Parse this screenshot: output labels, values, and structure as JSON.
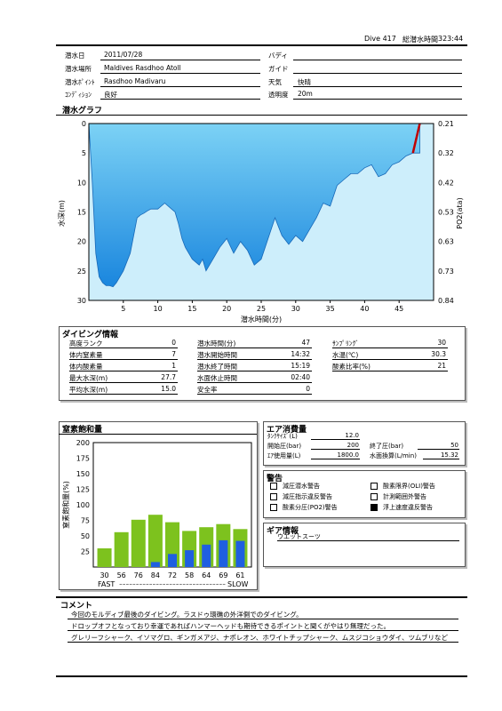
{
  "header": {
    "dive_label": "Dive 417",
    "total_time_label": "総潜水時間",
    "total_time": "323:44"
  },
  "info": {
    "date_label": "潜水日",
    "date": "2011/07/28",
    "place_label": "潜水場所",
    "place": "Maldives Rasdhoo Atoll",
    "point_label": "潜水ﾎﾟｲﾝﾄ",
    "point": "Rasdhoo Madivaru",
    "condition_label": "ｺﾝﾃﾞｨｼｮﾝ",
    "condition": "良好",
    "buddy_label": "バディ",
    "buddy": "",
    "guide_label": "ガイド",
    "guide": "",
    "weather_label": "天気",
    "weather": "快晴",
    "visibility_label": "透明度",
    "visibility": "20m"
  },
  "graph": {
    "title": "潜水グラフ",
    "ylabel": "水深(m)",
    "ylabel_right": "PO2(ata)",
    "xlabel": "潜水時間(分)"
  },
  "chart_data": {
    "type": "area",
    "title": "潜水グラフ",
    "xlabel": "潜水時間(分)",
    "ylabel": "水深(m)",
    "ylabel_right": "PO2(ata)",
    "xlim": [
      0,
      50
    ],
    "ylim": [
      0,
      30
    ],
    "x_ticks": [
      "5",
      "10",
      "15",
      "20",
      "25",
      "30",
      "35",
      "40",
      "45"
    ],
    "y_ticks": [
      "0",
      "5",
      "10",
      "15",
      "20",
      "25",
      "30"
    ],
    "y2_ticks": [
      "0.21",
      "0.32",
      "0.42",
      "0.53",
      "0.63",
      "0.73",
      "0.84"
    ],
    "depth_x": [
      0,
      0.5,
      1,
      1.5,
      2,
      2.5,
      3,
      3.5,
      4,
      5,
      6,
      7,
      7.5,
      8,
      8.5,
      9,
      10,
      11,
      12,
      12.5,
      13,
      13.5,
      14,
      15,
      16,
      16.5,
      17,
      18,
      19,
      20,
      21,
      22,
      23,
      24,
      25,
      26,
      27,
      28,
      29,
      30,
      31,
      32,
      33,
      34,
      35,
      36,
      37,
      38,
      39,
      40,
      41,
      42,
      43,
      44,
      45,
      46,
      47,
      48
    ],
    "depth_y": [
      0,
      10,
      22,
      26,
      27,
      27.5,
      27.5,
      27.7,
      27,
      25,
      22,
      16,
      15.5,
      15.2,
      14.8,
      14.5,
      14.5,
      13.5,
      14.5,
      15,
      17,
      19.5,
      21,
      23,
      24,
      23,
      25,
      23,
      21,
      19.5,
      22,
      20,
      21.5,
      24,
      23,
      19.5,
      16,
      19,
      20.5,
      19,
      20,
      18,
      16,
      13.5,
      14,
      10.5,
      9.5,
      8.5,
      8.5,
      7.5,
      7,
      9,
      8.5,
      7,
      6.5,
      5.5,
      5,
      5
    ],
    "ascent_x": [
      47,
      48
    ],
    "ascent_y": [
      5,
      0
    ],
    "area_color": "#1e90e0",
    "ascent_color": "#c00000"
  },
  "dive_info": {
    "title": "ダイビング情報",
    "col1": [
      {
        "label": "高度ランク",
        "value": "0"
      },
      {
        "label": "体内窒素量",
        "value": "7"
      },
      {
        "label": "体内酸素量",
        "value": "1"
      },
      {
        "label": "最大水深(m)",
        "value": "27.7"
      },
      {
        "label": "平均水深(m)",
        "value": "15.0"
      }
    ],
    "col2": [
      {
        "label": "潜水時間(分)",
        "value": "47"
      },
      {
        "label": "潜水開始時間",
        "value": "14:32"
      },
      {
        "label": "潜水終了時間",
        "value": "15:19"
      },
      {
        "label": "水面休止時間",
        "value": "02:40"
      },
      {
        "label": "安全率",
        "value": "0"
      }
    ],
    "col3": [
      {
        "label": "ｻﾝﾌﾟﾘﾝｸﾞ",
        "value": "30"
      },
      {
        "label": "水温(℃)",
        "value": "30.3"
      },
      {
        "label": "酸素比率(%)",
        "value": "21"
      }
    ]
  },
  "nitrogen": {
    "title": "窒素飽和量",
    "ylabel": "窒素飽和量(%)",
    "fast_label": "FAST",
    "slow_label": "SLOW",
    "dashes": "--------------------------------",
    "y_ticks": [
      "25",
      "50",
      "75",
      "100",
      "125",
      "150",
      "175",
      "200"
    ]
  },
  "nitrogen_chart": {
    "type": "bar",
    "categories": [
      "30",
      "56",
      "76",
      "84",
      "72",
      "58",
      "64",
      "69",
      "61"
    ],
    "series": [
      {
        "values": [
          30,
          56,
          76,
          84,
          72,
          58,
          64,
          69,
          61
        ],
        "color": "#7dc21e"
      },
      {
        "values": [
          0,
          0,
          0,
          8,
          21,
          27,
          36,
          43,
          42
        ],
        "color": "#1f5fe0"
      }
    ],
    "ylim": [
      0,
      200
    ]
  },
  "air": {
    "title": "エア消費量",
    "tank_label": "ﾀﾝｸｻｲｽﾞ(L)",
    "tank": "12.0",
    "start_label": "開始圧(bar)",
    "start": "200",
    "end_label": "終了圧(bar)",
    "end": "50",
    "used_label": "ｴｱ使用量(L)",
    "used": "1800.0",
    "surface_label": "水面換算(L/min)",
    "surface": "15.32"
  },
  "warnings": {
    "title": "警告",
    "items": [
      {
        "label": "減圧潜水警告",
        "checked": false
      },
      {
        "label": "酸素限界(OLI)警告",
        "checked": false
      },
      {
        "label": "減圧指示違反警告",
        "checked": false
      },
      {
        "label": "計測範囲外警告",
        "checked": false
      },
      {
        "label": "酸素分圧(PO2)警告",
        "checked": false
      },
      {
        "label": "浮上速度違反警告",
        "checked": true
      }
    ]
  },
  "gear": {
    "title": "ギア情報",
    "value": "ウエットスーツ"
  },
  "comment": {
    "title": "コメント",
    "lines": [
      "今回のモルディブ最後のダイビング。ラスドゥ環礁の外洋側でのダイビング。",
      "ドロップオフとなっており幸運であればハンマーヘッドも期待できるポイントと聞くがやはり無理だった。",
      "グレリーフシャーク、イソマグロ、ギンガメアジ、ナポレオン、ホワイトチップシャーク、ムスジコショウダイ、ツムブリなど"
    ]
  }
}
